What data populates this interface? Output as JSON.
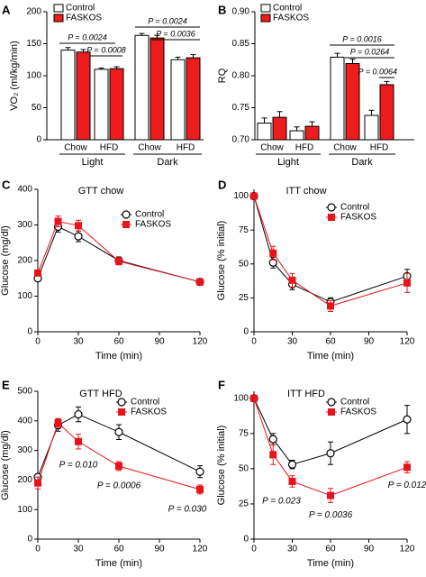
{
  "chart_data": [
    {
      "type": "bar",
      "panel": "A",
      "ylabel": "VO₂ (ml/kg/min)",
      "categories": [
        "Chow",
        "HFD",
        "Chow",
        "HFD"
      ],
      "groups": [
        "Light",
        "Dark"
      ],
      "series": [
        {
          "name": "Control",
          "color": "#ffffff",
          "values": [
            140,
            110,
            163,
            125
          ],
          "errors": [
            4,
            2,
            3,
            4
          ]
        },
        {
          "name": "FASKOS",
          "color": "#ee1c1c",
          "values": [
            137,
            111,
            159,
            128
          ],
          "errors": [
            4,
            3,
            4,
            5
          ]
        }
      ],
      "ylim": [
        0,
        200
      ],
      "yticks": [
        0,
        50,
        100,
        150,
        200
      ],
      "annotations": [
        "P = 0.0024",
        "P = 0.0008",
        "P = 0.0024",
        "P = 0.0036"
      ]
    },
    {
      "type": "bar",
      "panel": "B",
      "ylabel": "RQ",
      "categories": [
        "Chow",
        "HFD",
        "Chow",
        "HFD"
      ],
      "groups": [
        "Light",
        "Dark"
      ],
      "series": [
        {
          "name": "Control",
          "color": "#ffffff",
          "values": [
            0.726,
            0.714,
            0.829,
            0.738
          ],
          "errors": [
            0.008,
            0.006,
            0.006,
            0.008
          ]
        },
        {
          "name": "FASKOS",
          "color": "#ee1c1c",
          "values": [
            0.735,
            0.721,
            0.819,
            0.786
          ],
          "errors": [
            0.009,
            0.007,
            0.007,
            0.005
          ]
        }
      ],
      "ylim": [
        0.7,
        0.9
      ],
      "yticks": [
        {
          "value": 0.7,
          "label": "0.70"
        },
        0.75,
        {
          "value": 0.8,
          "label": "0.80"
        },
        0.85,
        {
          "value": 0.9,
          "label": "0.90"
        }
      ],
      "annotations": [
        "P = 0.0016",
        "P = 0.0264",
        "P = 0.0064"
      ]
    },
    {
      "type": "line",
      "panel": "C",
      "title": "GTT chow",
      "xlabel": "Time (min)",
      "ylabel": "Glucose (mg/dl)",
      "x": [
        0,
        15,
        30,
        60,
        120
      ],
      "series": [
        {
          "name": "Control",
          "color": "#000000",
          "marker": "circle-open",
          "values": [
            150,
            295,
            268,
            200,
            140
          ],
          "errors": [
            8,
            15,
            15,
            10,
            5
          ]
        },
        {
          "name": "FASKOS",
          "color": "#e8141b",
          "marker": "square",
          "values": [
            165,
            310,
            298,
            198,
            140
          ],
          "errors": [
            8,
            15,
            15,
            10,
            5
          ]
        }
      ],
      "xlim": [
        0,
        120
      ],
      "xticks": [
        0,
        30,
        60,
        90,
        120
      ],
      "ylim": [
        0,
        400
      ],
      "yticks": [
        0,
        100,
        200,
        300,
        400
      ]
    },
    {
      "type": "line",
      "panel": "D",
      "title": "ITT chow",
      "xlabel": "Time (min)",
      "ylabel": "Glucose (% initial)",
      "x": [
        0,
        15,
        30,
        60,
        120
      ],
      "series": [
        {
          "name": "Control",
          "color": "#000000",
          "marker": "circle-open",
          "values": [
            100,
            51,
            35,
            22,
            41
          ],
          "errors": [
            0,
            4,
            4,
            3,
            5
          ]
        },
        {
          "name": "FASKOS",
          "color": "#e8141b",
          "marker": "square",
          "values": [
            100,
            58,
            38,
            19,
            36
          ],
          "errors": [
            0,
            5,
            5,
            4,
            7
          ]
        }
      ],
      "xlim": [
        0,
        120
      ],
      "xticks": [
        0,
        30,
        60,
        90,
        120
      ],
      "ylim": [
        0,
        105
      ],
      "yticks": [
        0,
        25,
        50,
        75,
        100
      ]
    },
    {
      "type": "line",
      "panel": "E",
      "title": "GTT HFD",
      "xlabel": "Time (min)",
      "ylabel": "Glucose (mg/dl)",
      "x": [
        0,
        15,
        30,
        60,
        120
      ],
      "series": [
        {
          "name": "Control",
          "color": "#000000",
          "marker": "circle-open",
          "values": [
            210,
            385,
            422,
            362,
            228
          ],
          "errors": [
            10,
            20,
            25,
            25,
            20
          ]
        },
        {
          "name": "FASKOS",
          "color": "#e8141b",
          "marker": "square",
          "values": [
            190,
            393,
            330,
            247,
            168
          ],
          "errors": [
            20,
            15,
            25,
            15,
            15
          ]
        }
      ],
      "xlim": [
        0,
        120
      ],
      "xticks": [
        0,
        30,
        60,
        90,
        120
      ],
      "ylim": [
        0,
        500
      ],
      "yticks": [
        0,
        100,
        200,
        300,
        400,
        500
      ],
      "annotations": [
        "P = 0.010",
        "P = 0.0006",
        "P = 0.030"
      ]
    },
    {
      "type": "line",
      "panel": "F",
      "title": "ITT HFD",
      "xlabel": "Time (min)",
      "ylabel": "Glucose (% initial)",
      "x": [
        0,
        15,
        30,
        60,
        120
      ],
      "series": [
        {
          "name": "Control",
          "color": "#000000",
          "marker": "circle-open",
          "values": [
            100,
            71,
            53,
            61,
            85
          ],
          "errors": [
            0,
            4,
            3,
            8,
            10
          ]
        },
        {
          "name": "FASKOS",
          "color": "#e8141b",
          "marker": "square",
          "values": [
            100,
            60,
            41,
            31,
            51
          ],
          "errors": [
            0,
            7,
            4,
            5,
            4
          ]
        }
      ],
      "xlim": [
        0,
        120
      ],
      "xticks": [
        0,
        30,
        60,
        90,
        120
      ],
      "ylim": [
        0,
        105
      ],
      "yticks": [
        0,
        25,
        50,
        75,
        100
      ],
      "annotations": [
        "P = 0.023",
        "P = 0.0036",
        "P = 0.012"
      ]
    }
  ]
}
